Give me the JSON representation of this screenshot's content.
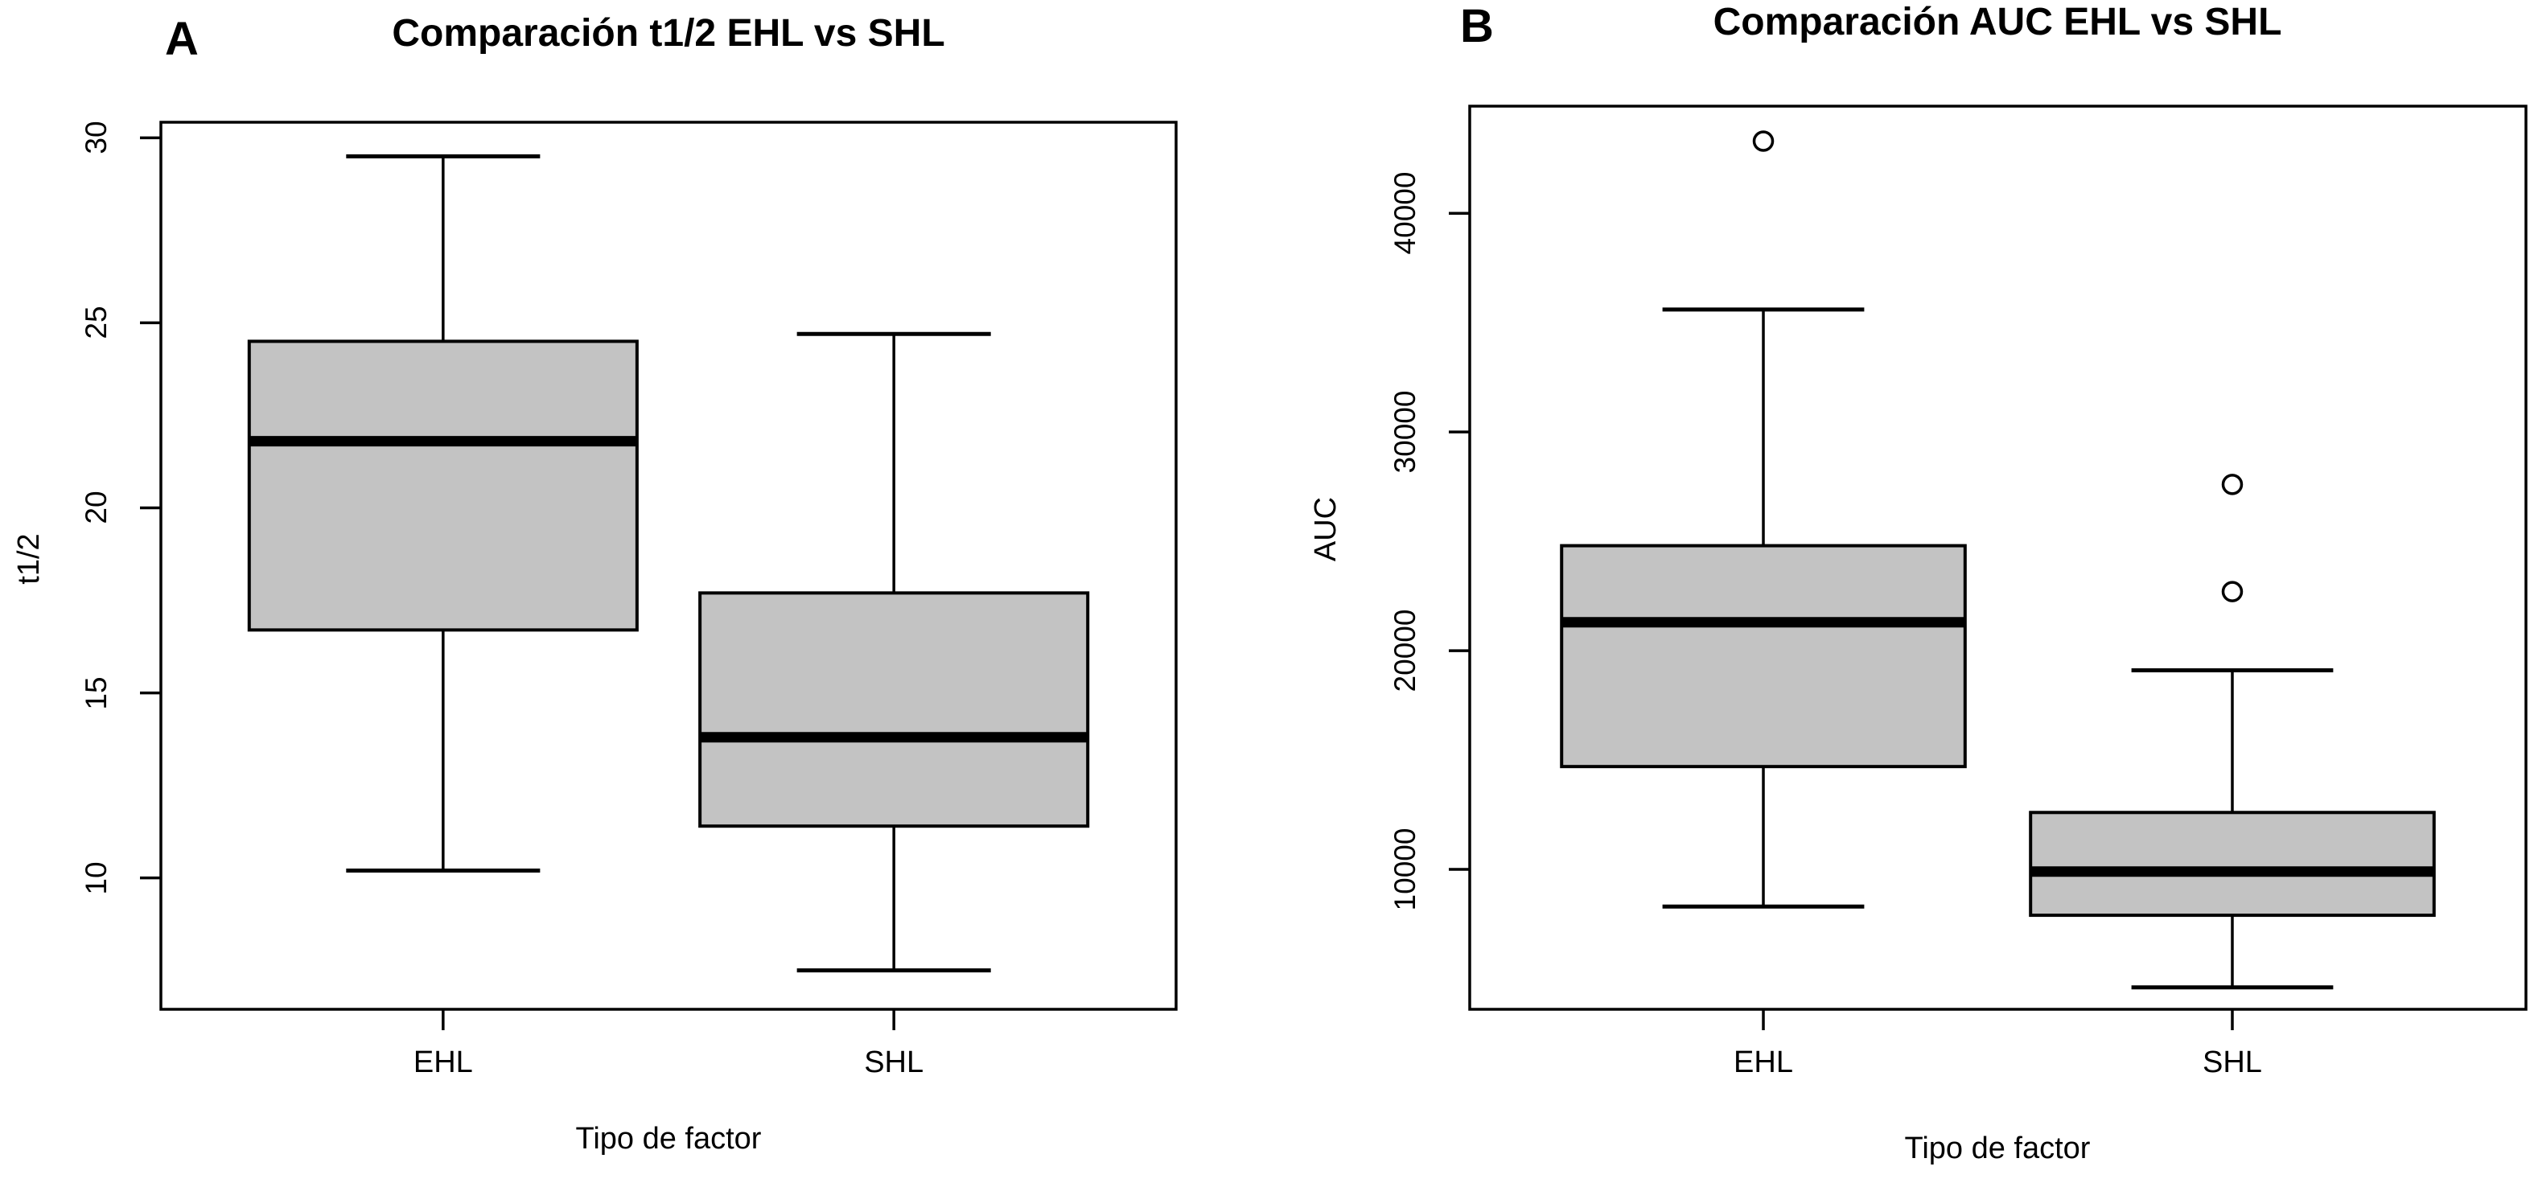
{
  "figure": {
    "background": "#ffffff",
    "box_fill": "#c3c3c3",
    "line_color": "#000000"
  },
  "chart_data": [
    {
      "type": "boxplot",
      "panel_label": "A",
      "title": "Comparación t1/2 EHL vs SHL",
      "xlabel": "Tipo de factor",
      "ylabel": "t1/2",
      "categories": [
        "EHL",
        "SHL"
      ],
      "yticks": [
        10,
        15,
        20,
        25,
        30
      ],
      "ylim": [
        6.45,
        30.42
      ],
      "grid": false,
      "series": [
        {
          "name": "EHL",
          "min": 10.2,
          "q1": 16.7,
          "median": 21.8,
          "q3": 24.5,
          "max": 29.5,
          "outliers": []
        },
        {
          "name": "SHL",
          "min": 7.5,
          "q1": 11.4,
          "median": 13.8,
          "q3": 17.7,
          "max": 24.7,
          "outliers": []
        }
      ]
    },
    {
      "type": "boxplot",
      "panel_label": "B",
      "title": "Comparación AUC EHL vs SHL",
      "xlabel": "Tipo de factor",
      "ylabel": "AUC",
      "categories": [
        "EHL",
        "SHL"
      ],
      "yticks": [
        10000,
        20000,
        30000,
        40000
      ],
      "ylim": [
        3600,
        44900
      ],
      "grid": false,
      "series": [
        {
          "name": "EHL",
          "min": 8300,
          "q1": 14700,
          "median": 21300,
          "q3": 24800,
          "max": 35600,
          "outliers": [
            43300
          ]
        },
        {
          "name": "SHL",
          "min": 4600,
          "q1": 7900,
          "median": 9900,
          "q3": 12600,
          "max": 19100,
          "outliers": [
            27600,
            22700
          ]
        }
      ]
    }
  ]
}
